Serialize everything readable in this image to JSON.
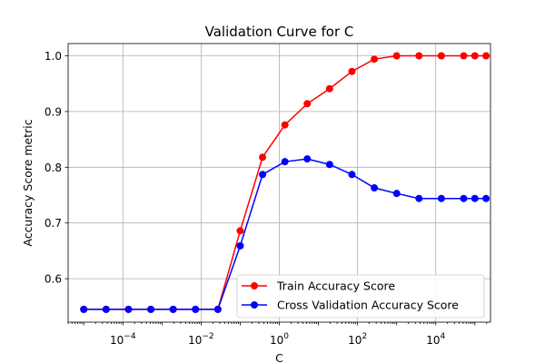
{
  "chart_data": {
    "type": "line",
    "title": "Validation Curve for C",
    "xlabel": "C",
    "ylabel": "Accuracy Score metric",
    "xscale": "log",
    "xlim": [
      3.98e-06,
      251000.0
    ],
    "ylim": [
      0.522,
      1.022
    ],
    "xticks": [
      {
        "value": 0.0001,
        "base": "10",
        "exp": "−4"
      },
      {
        "value": 0.01,
        "base": "10",
        "exp": "−2"
      },
      {
        "value": 1,
        "base": "10",
        "exp": "0"
      },
      {
        "value": 100,
        "base": "10",
        "exp": "2"
      },
      {
        "value": 10000,
        "base": "10",
        "exp": "4"
      }
    ],
    "yticks": [
      {
        "value": 0.6,
        "label": "0.6"
      },
      {
        "value": 0.7,
        "label": "0.7"
      },
      {
        "value": 0.8,
        "label": "0.8"
      },
      {
        "value": 0.9,
        "label": "0.9"
      },
      {
        "value": 1.0,
        "label": "1.0"
      }
    ],
    "grid": true,
    "legend_position": "lower-right",
    "x": [
      1e-05,
      3.7276e-05,
      0.00013895,
      0.000517947,
      0.0019307,
      0.00719686,
      0.026827,
      0.1,
      0.372759,
      1.3895,
      5.17947,
      19.307,
      71.9686,
      268.27,
      1000,
      3727.59,
      13894.95,
      51794.75,
      193069.77,
      100000
    ],
    "series": [
      {
        "name": "Train Accuracy Score",
        "color": "#ff0000",
        "values": [
          0.545,
          0.545,
          0.545,
          0.545,
          0.545,
          0.545,
          0.545,
          0.686,
          0.818,
          0.876,
          0.914,
          0.941,
          0.972,
          0.994,
          1.0,
          1.0,
          1.0,
          1.0,
          1.0,
          1.0
        ]
      },
      {
        "name": "Cross Validation Accuracy Score",
        "color": "#0000ff",
        "values": [
          0.545,
          0.545,
          0.545,
          0.545,
          0.545,
          0.545,
          0.545,
          0.659,
          0.787,
          0.81,
          0.815,
          0.805,
          0.787,
          0.763,
          0.753,
          0.744,
          0.744,
          0.744,
          0.744,
          0.744
        ]
      }
    ]
  }
}
